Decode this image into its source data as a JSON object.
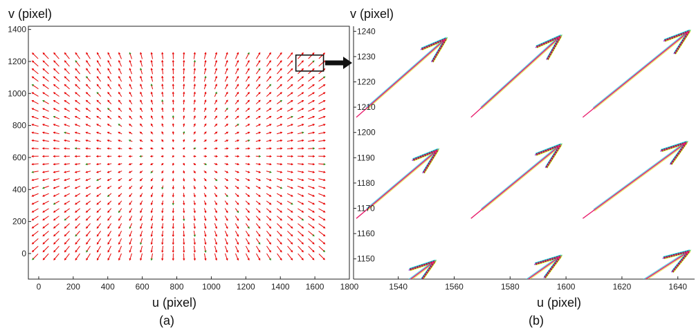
{
  "chart_data": [
    {
      "type": "quiver",
      "panel_caption": "(a)",
      "xlabel": "u (pixel)",
      "ylabel": "v (pixel)",
      "xlim": [
        -60,
        1800
      ],
      "ylim": [
        -160,
        1420
      ],
      "xticks": [
        0,
        200,
        400,
        600,
        800,
        1000,
        1200,
        1400,
        1600,
        1800
      ],
      "yticks": [
        0,
        200,
        400,
        600,
        800,
        1000,
        1200,
        1400
      ],
      "grid": false,
      "field": {
        "u_range": [
          -20,
          1640
        ],
        "v_range": [
          -20,
          1235
        ],
        "columns": 28,
        "rows": 27,
        "center": [
          800,
          620
        ],
        "vectors_point_away_from_center": true
      },
      "zoom_box": {
        "u": [
          1490,
          1650
        ],
        "v": [
          1140,
          1240
        ]
      },
      "colors": {
        "arrow": "#e60000",
        "secondary": "#1a9a1a"
      }
    },
    {
      "type": "quiver",
      "panel_caption": "(b)",
      "xlabel": "u (pixel)",
      "ylabel": "v (pixel)",
      "xlim": [
        1524,
        1646
      ],
      "ylim": [
        1142,
        1242
      ],
      "xticks": [
        1540,
        1560,
        1580,
        1600,
        1620,
        1640
      ],
      "yticks": [
        1150,
        1160,
        1170,
        1180,
        1190,
        1200,
        1210,
        1220,
        1230,
        1240
      ],
      "grid": false,
      "arrows": [
        {
          "u": 1525,
          "v": 1206,
          "du": 32,
          "dv": 31
        },
        {
          "u": 1566,
          "v": 1206,
          "du": 32,
          "dv": 32
        },
        {
          "u": 1606,
          "v": 1206,
          "du": 38,
          "dv": 34
        },
        {
          "u": 1525,
          "v": 1166,
          "du": 29,
          "dv": 27
        },
        {
          "u": 1566,
          "v": 1166,
          "du": 32,
          "dv": 29
        },
        {
          "u": 1606,
          "v": 1166,
          "du": 37,
          "dv": 30
        },
        {
          "u": 1525,
          "v": 1126,
          "du": 28,
          "dv": 23
        },
        {
          "u": 1566,
          "v": 1126,
          "du": 32,
          "dv": 25
        },
        {
          "u": 1606,
          "v": 1126,
          "du": 38,
          "dv": 27
        }
      ],
      "colors": {
        "arrow": "#e8206e",
        "outline": "#111111",
        "accents": [
          "#7a2de0",
          "#2ad02a",
          "#e0e020",
          "#20c8e0"
        ]
      }
    }
  ]
}
